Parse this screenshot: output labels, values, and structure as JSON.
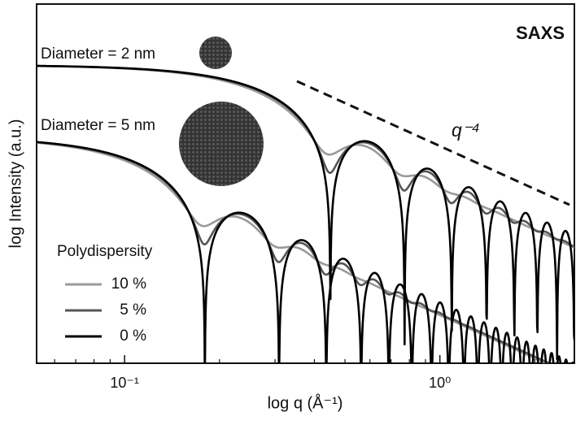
{
  "chart_data": {
    "type": "line",
    "title": "SAXS",
    "x_label": "log q (Å⁻¹)",
    "y_label": "log Intensity (a.u.)",
    "xscale": "log",
    "yscale": "log",
    "xlim": [
      0.0526,
      2.67
    ],
    "xticks": [
      {
        "value": 0.1,
        "label": "10⁻¹"
      },
      {
        "value": 1,
        "label": "10⁰"
      }
    ],
    "xminorticks": [
      0.06,
      0.07,
      0.08,
      0.09,
      0.2,
      0.3,
      0.4,
      0.5,
      0.6,
      0.7,
      0.8,
      0.9,
      2
    ],
    "curves": [
      {
        "label": "Diameter = 2 nm",
        "diameter_nm": 2
      },
      {
        "label": "Diameter = 5 nm",
        "diameter_nm": 5
      }
    ],
    "legend_title": "Polydispersity",
    "series": [
      {
        "name": "10 %",
        "polydispersity": 10,
        "color": "#999999"
      },
      {
        "name": "5 %",
        "polydispersity": 5,
        "color": "#555555"
      },
      {
        "name": "0 %",
        "polydispersity": 0,
        "color": "#000000"
      }
    ],
    "annotation": "q⁻⁴"
  }
}
